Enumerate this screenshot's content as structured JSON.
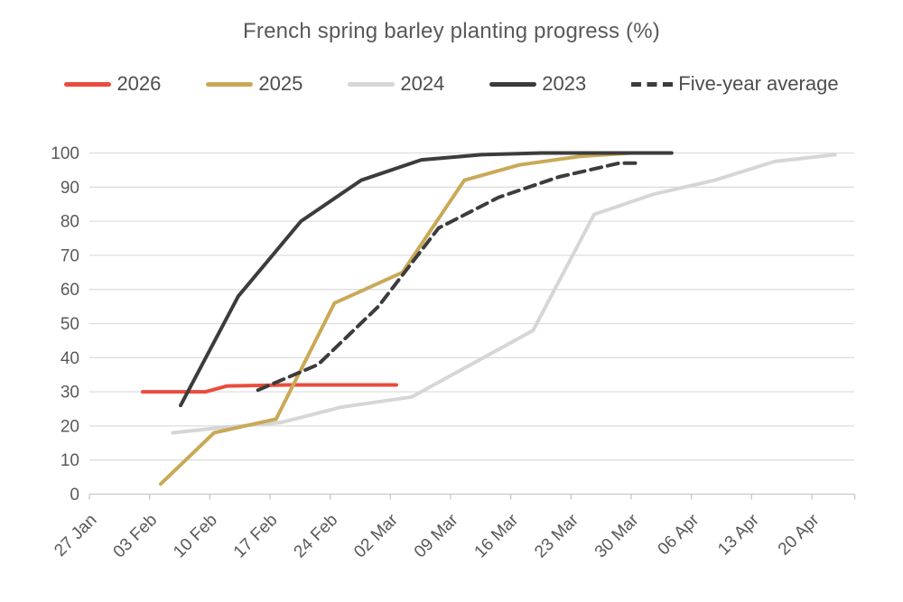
{
  "chart_data": {
    "type": "line",
    "title": "French spring barley planting progress (%)",
    "x_axis": {
      "unit": "date (weekly ticks)",
      "tick_labels": [
        "27 Jan",
        "03 Feb",
        "10 Feb",
        "17 Feb",
        "24 Feb",
        "02 Mar",
        "09 Mar",
        "16 Mar",
        "23 Mar",
        "30 Mar",
        "06 Apr",
        "13 Apr",
        "20 Apr"
      ],
      "tick_days": [
        0,
        7,
        14,
        21,
        28,
        35,
        42,
        49,
        56,
        63,
        70,
        77,
        84
      ],
      "day_zero": "27 Jan",
      "range_days": [
        0,
        89
      ]
    },
    "y_axis": {
      "tick_values": [
        0,
        10,
        20,
        30,
        40,
        50,
        60,
        70,
        80,
        90,
        100
      ],
      "range": [
        0,
        100
      ]
    },
    "grid": "horizontal",
    "legend_position": "top",
    "series": [
      {
        "name": "2026",
        "color": "#EA4C3D",
        "style": "solid",
        "points_day_value": [
          [
            6.2,
            30
          ],
          [
            13.5,
            30
          ],
          [
            16,
            31.7
          ],
          [
            23,
            32
          ],
          [
            30,
            32
          ],
          [
            35.7,
            32
          ]
        ]
      },
      {
        "name": "2025",
        "color": "#C9A957",
        "style": "solid",
        "points_day_value": [
          [
            8.3,
            3
          ],
          [
            14.5,
            18
          ],
          [
            21.7,
            22
          ],
          [
            28.5,
            56
          ],
          [
            36.4,
            65
          ],
          [
            43.6,
            92
          ],
          [
            50,
            96.5
          ],
          [
            57,
            99
          ],
          [
            63,
            100
          ]
        ]
      },
      {
        "name": "2024",
        "color": "#D6D6D6",
        "style": "solid",
        "points_day_value": [
          [
            9.7,
            18
          ],
          [
            15.3,
            19.5
          ],
          [
            22.3,
            21
          ],
          [
            29.3,
            25.5
          ],
          [
            37.5,
            28.5
          ],
          [
            51.6,
            48
          ],
          [
            58.7,
            82
          ],
          [
            65.7,
            88
          ],
          [
            72.7,
            92
          ],
          [
            79.7,
            97.5
          ],
          [
            86.7,
            99.5
          ]
        ]
      },
      {
        "name": "2023",
        "color": "#3C3C3C",
        "style": "solid",
        "points_day_value": [
          [
            10.6,
            26
          ],
          [
            17.3,
            58
          ],
          [
            24.6,
            80
          ],
          [
            31.6,
            92
          ],
          [
            38.6,
            98
          ],
          [
            45.6,
            99.5
          ],
          [
            52.6,
            100
          ],
          [
            67.7,
            100
          ]
        ]
      },
      {
        "name": "Five-year average",
        "color": "#3C3C3C",
        "style": "dashed",
        "points_day_value": [
          [
            19.6,
            30.5
          ],
          [
            26.6,
            38
          ],
          [
            33.6,
            55
          ],
          [
            40.6,
            78
          ],
          [
            47.6,
            87
          ],
          [
            54.6,
            93
          ],
          [
            61.6,
            97
          ],
          [
            64,
            97
          ]
        ]
      }
    ],
    "draw_order": [
      "2024",
      "2026",
      "2025",
      "2023",
      "Five-year average"
    ]
  },
  "style": {
    "background": "#FFFFFF",
    "title_color": "#595959",
    "axis_text_color": "#595959",
    "legend_text_color": "#4D4D4D",
    "gridline_color": "#DEDEDE",
    "axis_line_color": "#C8C8C8"
  }
}
